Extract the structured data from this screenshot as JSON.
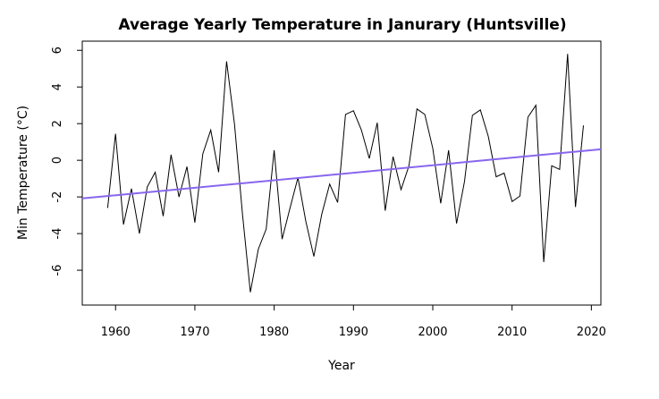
{
  "chart_data": {
    "type": "line",
    "title": "Average Yearly Temperature in Janurary (Huntsville)",
    "xlabel": "Year",
    "ylabel": "Min Temperature (°C)",
    "xlim": [
      1955.8,
      2021.2
    ],
    "ylim": [
      -7.9,
      6.5
    ],
    "xticks": [
      1960,
      1970,
      1980,
      1990,
      2000,
      2010,
      2020
    ],
    "yticks": [
      -6,
      -4,
      -2,
      0,
      2,
      4,
      6
    ],
    "grid": false,
    "series": [
      {
        "color": "#000000",
        "x": [
          1959,
          1960,
          1961,
          1962,
          1963,
          1964,
          1965,
          1966,
          1967,
          1968,
          1969,
          1970,
          1971,
          1972,
          1973,
          1974,
          1975,
          1976,
          1977,
          1978,
          1979,
          1980,
          1981,
          1982,
          1983,
          1984,
          1985,
          1986,
          1987,
          1988,
          1989,
          1990,
          1991,
          1992,
          1993,
          1994,
          1995,
          1996,
          1997,
          1998,
          1999,
          2000,
          2001,
          2002,
          2003,
          2004,
          2005,
          2006,
          2007,
          2008,
          2009,
          2010,
          2011,
          2012,
          2013,
          2014,
          2015,
          2016,
          2017,
          2018,
          2019
        ],
        "values": [
          -2.6,
          1.45,
          -3.5,
          -1.55,
          -4.0,
          -1.45,
          -0.65,
          -3.05,
          0.3,
          -2.0,
          -0.35,
          -3.4,
          0.35,
          1.65,
          -0.65,
          5.4,
          1.95,
          -2.9,
          -7.2,
          -4.85,
          -3.75,
          0.55,
          -4.3,
          -2.6,
          -0.95,
          -3.35,
          -5.25,
          -2.95,
          -1.3,
          -2.3,
          2.5,
          2.7,
          1.65,
          0.1,
          2.05,
          -2.75,
          0.2,
          -1.6,
          -0.3,
          2.8,
          2.5,
          0.65,
          -2.35,
          0.55,
          -3.45,
          -1.15,
          2.45,
          2.75,
          1.3,
          -0.9,
          -0.7,
          -2.25,
          -1.95,
          2.35,
          3.0,
          -5.55,
          -0.3,
          -0.5,
          5.8,
          -2.55,
          1.9
        ]
      },
      {
        "color": "#8866ee",
        "trend": true,
        "x": [
          1955.8,
          2021.2
        ],
        "values": [
          -2.08,
          0.6
        ]
      }
    ]
  }
}
